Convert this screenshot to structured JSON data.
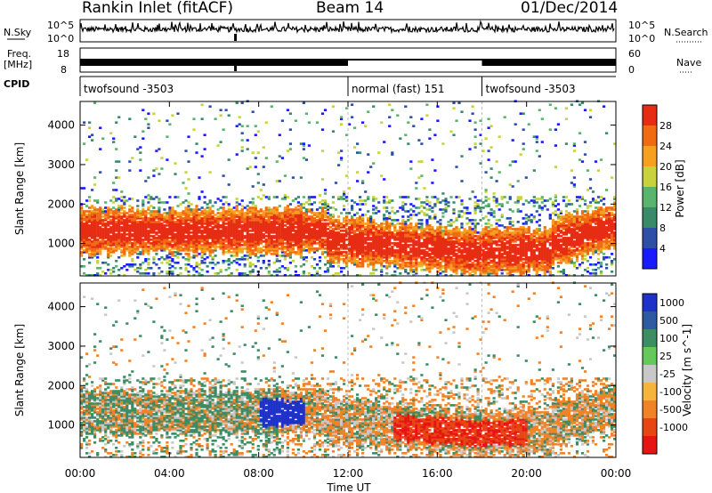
{
  "header": {
    "station": "Rankin Inlet (fitACF)",
    "beam": "Beam 14",
    "date": "01/Dec/2014"
  },
  "top_panels": {
    "nsky_label": "N.Sky",
    "nsky_ticks": [
      "10^5",
      "10^0"
    ],
    "nsearch_label": "N.Search",
    "freq_label_line1": "Freq.",
    "freq_label_line2": "[MHz]",
    "freq_ticks": [
      "18",
      "8"
    ],
    "nave_label": "Nave",
    "nave_ticks": [
      "60",
      "0"
    ],
    "cpid_label": "CPID",
    "cpid_segments": [
      {
        "label": "twofsound -3503",
        "start_hour": 0,
        "end_hour": 12
      },
      {
        "label": "normal (fast) 151",
        "start_hour": 12,
        "end_hour": 18
      },
      {
        "label": "twofsound -3503",
        "start_hour": 18,
        "end_hour": 24
      }
    ]
  },
  "chart_data": [
    {
      "type": "heatmap",
      "title": "Power",
      "xlabel": "Time UT",
      "ylabel": "Slant Range [km]",
      "xlim": [
        0,
        24
      ],
      "ylim": [
        180,
        4600
      ],
      "yticks": [
        1000,
        2000,
        3000,
        4000
      ],
      "colorbar_label": "Power [dB]",
      "colorbar_ticks": [
        "4",
        "8",
        "12",
        "16",
        "20",
        "24",
        "28"
      ],
      "colorbar_range": [
        0,
        32
      ],
      "colors": [
        "#1a1aff",
        "#2d4fa6",
        "#3a8a6a",
        "#5ab46e",
        "#c8d23c",
        "#f5a020",
        "#f06a14",
        "#e62d14"
      ],
      "description_points": [
        {
          "hour": 1,
          "range": 1300,
          "value": 28
        },
        {
          "hour": 6,
          "range": 1400,
          "value": 24
        },
        {
          "hour": 11,
          "range": 1200,
          "value": 26
        },
        {
          "hour": 16,
          "range": 900,
          "value": 29
        },
        {
          "hour": 20,
          "range": 700,
          "value": 28
        },
        {
          "hour": 23,
          "range": 1300,
          "value": 26
        }
      ]
    },
    {
      "type": "heatmap",
      "title": "Velocity",
      "xlabel": "Time UT",
      "ylabel": "Slant Range [km]",
      "xlim": [
        0,
        24
      ],
      "ylim": [
        180,
        4600
      ],
      "yticks": [
        1000,
        2000,
        3000,
        4000
      ],
      "colorbar_label": "Velocity [m s^-1]",
      "colorbar_ticks": [
        "1000",
        "500",
        "100",
        "25",
        "-25",
        "-100",
        "-500",
        "-1000"
      ],
      "colors": [
        "#1e32c8",
        "#2d5aa0",
        "#3c8c64",
        "#64c85a",
        "#c8c8c8",
        "#f5b43c",
        "#f08228",
        "#e64614",
        "#e61414"
      ],
      "xticks": [
        "00:00",
        "04:00",
        "08:00",
        "12:00",
        "16:00",
        "20:00",
        "00:00"
      ]
    }
  ]
}
